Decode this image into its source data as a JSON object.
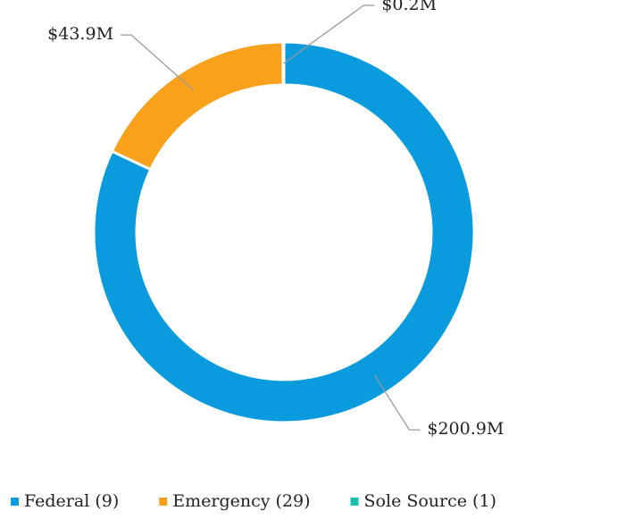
{
  "chart_data": {
    "type": "donut",
    "categories": [
      "Federal (9)",
      "Emergency (29)",
      "Sole Source (1)"
    ],
    "values": [
      200.9,
      43.9,
      0.2
    ],
    "value_labels": [
      "$200.9M",
      "$43.9M",
      "$0.2M"
    ],
    "colors": [
      "#0a9ade",
      "#f9a11b",
      "#1bbfa8"
    ],
    "legend": "bottom"
  }
}
